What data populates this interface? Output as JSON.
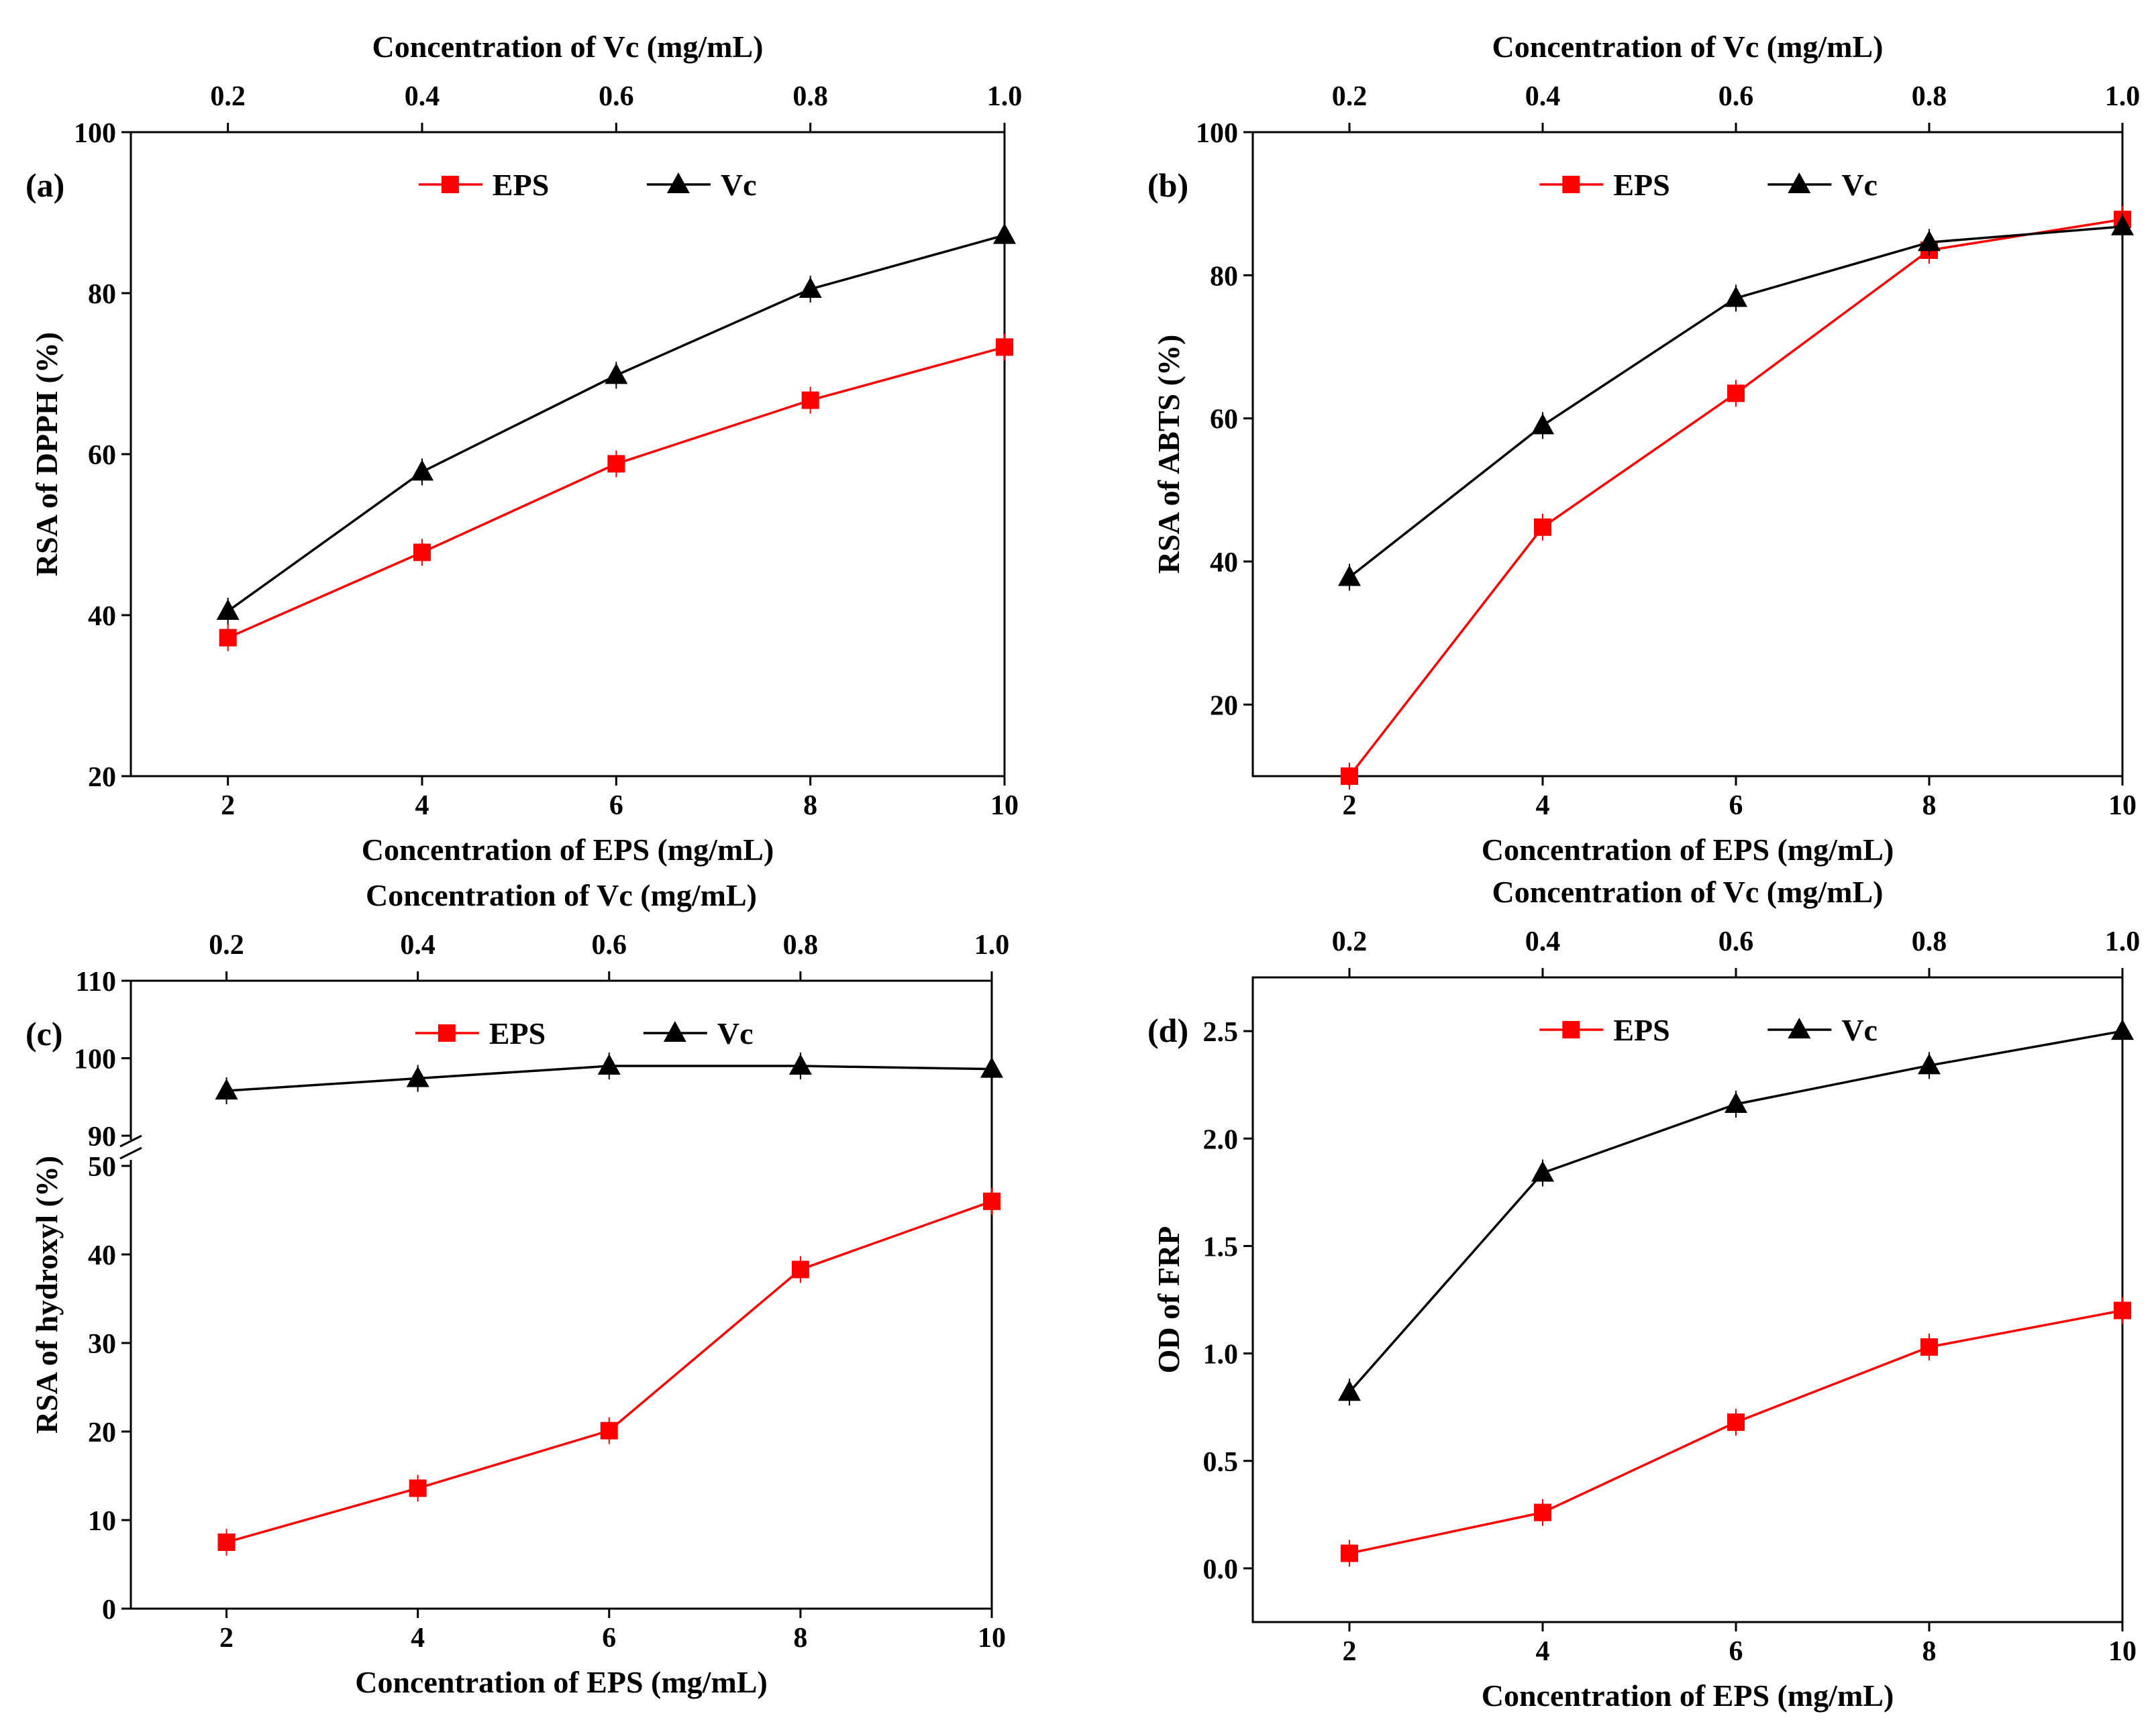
{
  "chart_data": [
    {
      "id": "a",
      "type": "line",
      "panel_label": "(a)",
      "top_axis_title": "Concentration of Vc (mg/mL)",
      "top_ticks": [
        "0.2",
        "0.4",
        "0.6",
        "0.8",
        "1.0"
      ],
      "xlabel": "Concentration of EPS (mg/mL)",
      "ylabel": "RSA of DPPH (%)",
      "x": [
        2,
        4,
        6,
        8,
        10
      ],
      "xlim": [
        1,
        10
      ],
      "ylim": [
        20,
        100
      ],
      "yticks": [
        20,
        40,
        60,
        80,
        100
      ],
      "legend": {
        "placement": "top-center"
      },
      "series": [
        {
          "name": "EPS",
          "color": "#ff0000",
          "marker": "square",
          "values": [
            37.2,
            47.8,
            58.8,
            66.7,
            73.3
          ]
        },
        {
          "name": "Vc",
          "color": "#000000",
          "marker": "triangle",
          "values": [
            40.5,
            57.8,
            69.8,
            80.5,
            87.2
          ]
        }
      ]
    },
    {
      "id": "b",
      "type": "line",
      "panel_label": "(b)",
      "top_axis_title": "Concentration of Vc (mg/mL)",
      "top_ticks": [
        "0.2",
        "0.4",
        "0.6",
        "0.8",
        "1.0"
      ],
      "xlabel": "Concentration of EPS (mg/mL)",
      "ylabel": "RSA of ABTS  (%)",
      "x": [
        2,
        4,
        6,
        8,
        10
      ],
      "xlim": [
        1,
        10
      ],
      "ylim": [
        10,
        100
      ],
      "yticks": [
        20,
        40,
        60,
        80,
        100
      ],
      "legend": {
        "placement": "top-center"
      },
      "series": [
        {
          "name": "EPS",
          "color": "#ff0000",
          "marker": "square",
          "values": [
            10.0,
            44.8,
            63.5,
            83.5,
            87.8
          ]
        },
        {
          "name": "Vc",
          "color": "#000000",
          "marker": "triangle",
          "values": [
            37.8,
            59.0,
            76.8,
            84.6,
            86.8
          ]
        }
      ]
    },
    {
      "id": "c",
      "type": "line",
      "panel_label": "(c)",
      "top_axis_title": "Concentration of Vc (mg/mL)",
      "top_ticks": [
        "0.2",
        "0.4",
        "0.6",
        "0.8",
        "1.0"
      ],
      "xlabel": "Concentration of EPS (mg/mL)",
      "ylabel": "RSA of hydroxyl (%)",
      "x": [
        2,
        4,
        6,
        8,
        10
      ],
      "xlim": [
        1,
        10
      ],
      "broken_axis": true,
      "ylim_lower": [
        0,
        50
      ],
      "ylim_upper": [
        90,
        110
      ],
      "yticks_lower": [
        0,
        10,
        20,
        30,
        40,
        50
      ],
      "yticks_upper": [
        90,
        100,
        110
      ],
      "legend": {
        "placement": "top-center"
      },
      "series": [
        {
          "name": "EPS",
          "color": "#ff0000",
          "marker": "square",
          "values": [
            7.5,
            13.6,
            20.1,
            38.3,
            46.0
          ]
        },
        {
          "name": "Vc",
          "color": "#000000",
          "marker": "triangle",
          "values": [
            95.8,
            97.4,
            99.0,
            99.0,
            98.6
          ]
        }
      ]
    },
    {
      "id": "d",
      "type": "line",
      "panel_label": "(d)",
      "top_axis_title": "Concentration of Vc (mg/mL)",
      "top_ticks": [
        "0.2",
        "0.4",
        "0.6",
        "0.8",
        "1.0"
      ],
      "xlabel": "Concentration of EPS (mg/mL)",
      "ylabel": "OD of FRP",
      "x": [
        2,
        4,
        6,
        8,
        10
      ],
      "xlim": [
        1,
        10
      ],
      "ylim": [
        -0.25,
        2.75
      ],
      "yticks": [
        "0.0",
        "0.5",
        "1.0",
        "1.5",
        "2.0",
        "2.5"
      ],
      "legend": {
        "placement": "top-center"
      },
      "series": [
        {
          "name": "EPS",
          "color": "#ff0000",
          "marker": "square",
          "values": [
            0.07,
            0.26,
            0.68,
            1.03,
            1.2
          ]
        },
        {
          "name": "Vc",
          "color": "#000000",
          "marker": "triangle",
          "values": [
            0.82,
            1.84,
            2.16,
            2.34,
            2.5
          ]
        }
      ]
    }
  ]
}
